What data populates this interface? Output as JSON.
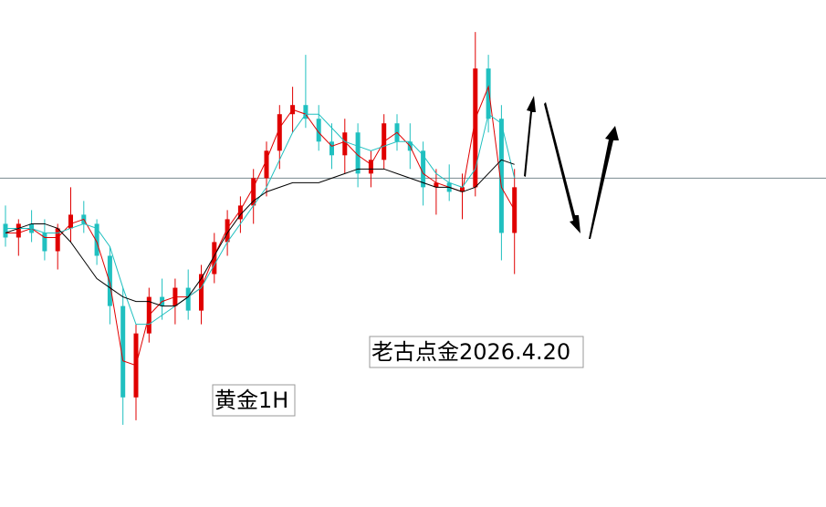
{
  "chart_data": {
    "type": "candlestick",
    "ylim": [
      0,
      111
    ],
    "up_color": "#e00000",
    "down_color": "#20c0c0",
    "open": [
      62,
      59,
      62,
      60,
      56,
      61,
      64,
      62,
      55,
      44,
      24,
      38,
      46,
      44,
      48,
      43,
      51,
      58,
      63,
      66,
      72,
      78,
      86,
      88,
      85,
      80,
      77,
      82,
      73,
      76,
      84,
      80,
      78,
      70,
      71,
      69,
      70,
      96,
      85,
      60
    ],
    "high": [
      66,
      63,
      65,
      63,
      62,
      70,
      67,
      63,
      57,
      48,
      40,
      48,
      50,
      50,
      52,
      53,
      60,
      65,
      68,
      74,
      80,
      88,
      92,
      99,
      88,
      84,
      85,
      84,
      78,
      86,
      86,
      84,
      80,
      74,
      75,
      73,
      104,
      99,
      88,
      74
    ],
    "low": [
      57,
      55,
      58,
      54,
      52,
      58,
      60,
      53,
      40,
      18,
      19,
      36,
      41,
      40,
      41,
      40,
      49,
      55,
      60,
      62,
      68,
      74,
      82,
      83,
      78,
      74,
      73,
      70,
      70,
      74,
      78,
      74,
      66,
      64,
      67,
      63,
      68,
      82,
      54,
      51
    ],
    "close": [
      59,
      62,
      60,
      56,
      61,
      64,
      62,
      55,
      44,
      24,
      38,
      46,
      44,
      48,
      43,
      51,
      58,
      63,
      66,
      72,
      78,
      86,
      88,
      85,
      80,
      77,
      82,
      73,
      76,
      84,
      80,
      78,
      70,
      71,
      69,
      70,
      96,
      85,
      60,
      70
    ],
    "series": [
      {
        "color": "#e00000",
        "values": [
          60,
          60,
          61,
          59,
          59,
          62,
          63,
          58,
          49,
          32,
          31,
          42,
          45,
          46,
          46,
          48,
          55,
          61,
          65,
          70,
          76,
          83,
          87,
          86,
          82,
          79,
          80,
          77,
          75,
          80,
          82,
          79,
          73,
          71,
          70,
          69,
          85,
          92,
          70,
          65
        ]
      },
      {
        "color": "#20c0c0",
        "values": [
          61,
          61,
          61,
          60,
          60,
          61,
          62,
          61,
          57,
          48,
          40,
          40,
          42,
          44,
          46,
          48,
          53,
          58,
          62,
          66,
          70,
          76,
          82,
          86,
          86,
          83,
          80,
          79,
          78,
          79,
          80,
          80,
          77,
          73,
          71,
          70,
          74,
          86,
          84,
          72
        ]
      },
      {
        "color": "#000000",
        "values": [
          60,
          61,
          62,
          62,
          61,
          58,
          54,
          50,
          48,
          46,
          45,
          45,
          44,
          44,
          46,
          50,
          55,
          60,
          64,
          67,
          69,
          70,
          71,
          71,
          71,
          72,
          73,
          74,
          74,
          74,
          73,
          72,
          71,
          70,
          70,
          69,
          70,
          73,
          76,
          75
        ]
      }
    ],
    "reference_line": 72,
    "annotations": [
      "老古点金2026.4.20",
      "黄金1H"
    ]
  }
}
